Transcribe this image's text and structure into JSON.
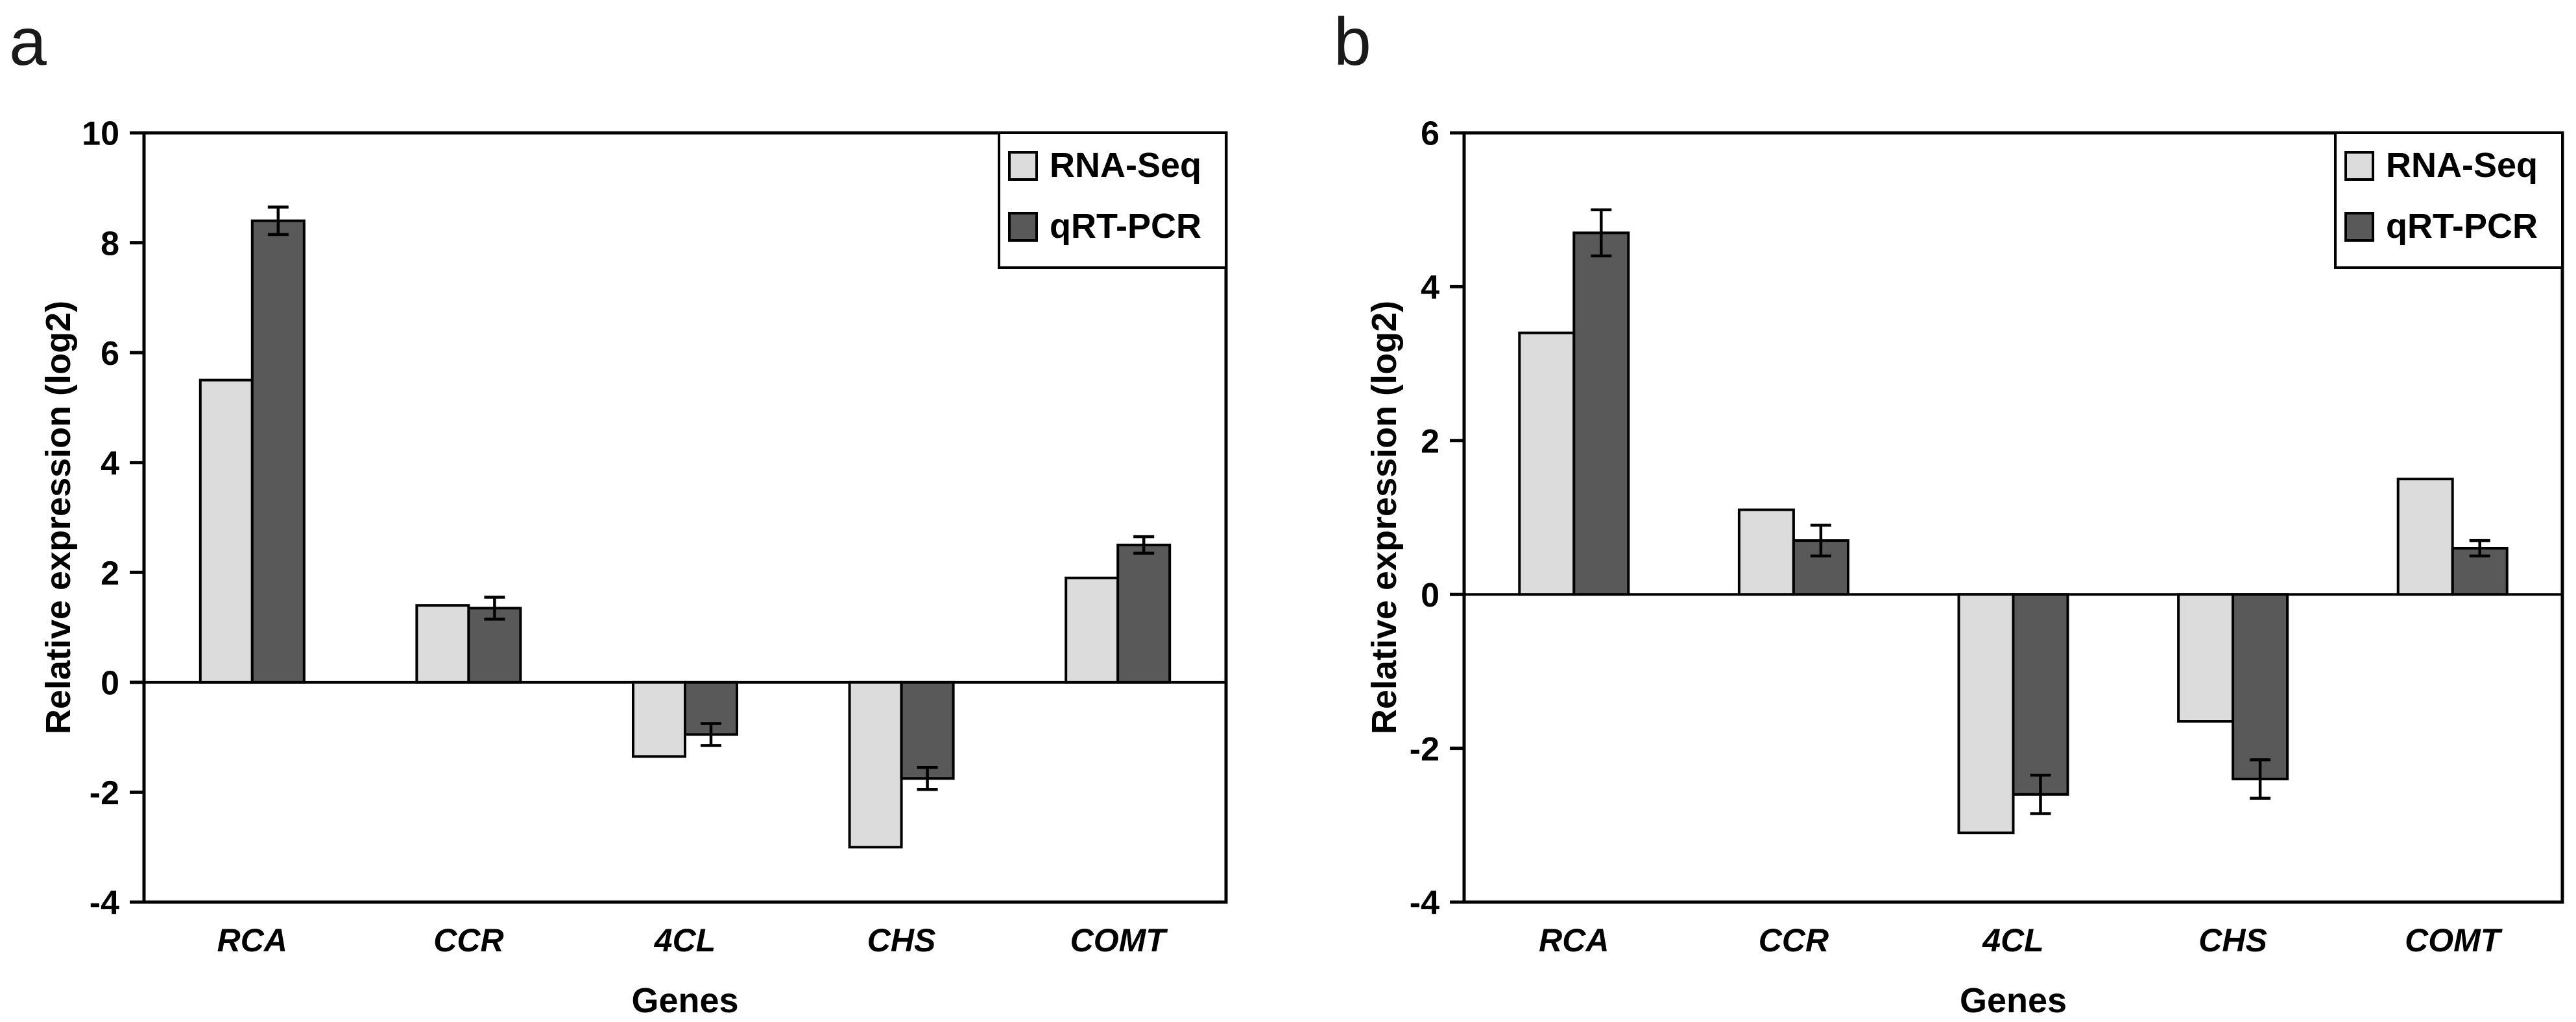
{
  "figure": {
    "background": "#ffffff",
    "text_color": "#000000"
  },
  "chart_data": [
    {
      "panel_label": "a",
      "type": "bar",
      "title": "",
      "xlabel": "Genes",
      "ylabel": "Relative expression (log2)",
      "ylim": [
        -4,
        10
      ],
      "yticks": [
        10,
        8,
        6,
        4,
        2,
        0,
        -2,
        -4
      ],
      "grid": false,
      "legend_position": "top-right",
      "categories": [
        "RCA",
        "CCR",
        "4CL",
        "CHS",
        "COMT"
      ],
      "series": [
        {
          "name": "RNA-Seq",
          "color": "#dcdcdc",
          "values": [
            5.5,
            1.4,
            -1.35,
            -3.0,
            1.9
          ]
        },
        {
          "name": "qRT-PCR",
          "color": "#595959",
          "values": [
            8.4,
            1.35,
            -0.95,
            -1.75,
            2.5
          ],
          "errors": [
            0.25,
            0.2,
            0.2,
            0.2,
            0.15
          ]
        }
      ]
    },
    {
      "panel_label": "b",
      "type": "bar",
      "title": "",
      "xlabel": "Genes",
      "ylabel": "Relative expression (log2)",
      "ylim": [
        -4,
        6
      ],
      "yticks": [
        6,
        4,
        2,
        0,
        -2,
        -4
      ],
      "grid": false,
      "legend_position": "top-right",
      "categories": [
        "RCA",
        "CCR",
        "4CL",
        "CHS",
        "COMT"
      ],
      "series": [
        {
          "name": "RNA-Seq",
          "color": "#dcdcdc",
          "values": [
            3.4,
            1.1,
            -3.1,
            -1.65,
            1.5
          ]
        },
        {
          "name": "qRT-PCR",
          "color": "#595959",
          "values": [
            4.7,
            0.7,
            -2.6,
            -2.4,
            0.6
          ],
          "errors": [
            0.3,
            0.2,
            0.25,
            0.25,
            0.1
          ]
        }
      ]
    }
  ]
}
